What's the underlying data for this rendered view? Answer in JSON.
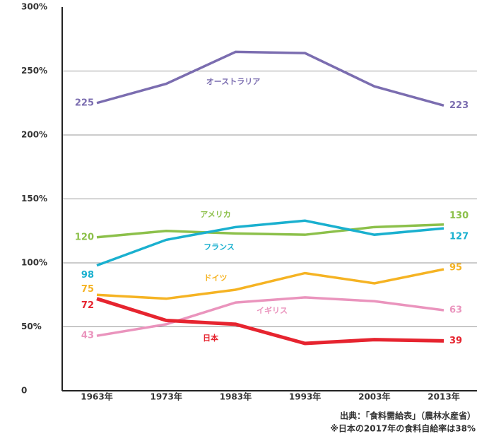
{
  "chart_data": {
    "type": "line",
    "categories": [
      "1963年",
      "1973年",
      "1983年",
      "1993年",
      "2003年",
      "2013年"
    ],
    "series": [
      {
        "name": "オーストラリア",
        "color": "#7b6db0",
        "values": [
          225,
          240,
          265,
          264,
          238,
          223
        ]
      },
      {
        "name": "アメリカ",
        "color": "#8cc04a",
        "values": [
          120,
          125,
          123,
          122,
          128,
          130
        ]
      },
      {
        "name": "フランス",
        "color": "#1ab0cf",
        "values": [
          98,
          118,
          128,
          133,
          122,
          127
        ]
      },
      {
        "name": "ドイツ",
        "color": "#f5b323",
        "values": [
          75,
          72,
          79,
          92,
          84,
          95
        ]
      },
      {
        "name": "イギリス",
        "color": "#ea94bd",
        "values": [
          43,
          52,
          69,
          73,
          70,
          63
        ]
      },
      {
        "name": "日本",
        "color": "#e6242f",
        "values": [
          72,
          55,
          52,
          37,
          40,
          39
        ]
      }
    ],
    "ylim": [
      0,
      300
    ],
    "yticks": [
      0,
      {
        "value": 50,
        "label": "50%"
      },
      {
        "value": 100,
        "label": "100%"
      },
      {
        "value": 150,
        "label": "150%"
      },
      {
        "value": 200,
        "label": "200%"
      },
      {
        "value": 250,
        "label": "250%"
      },
      {
        "value": 300,
        "label": "300%"
      }
    ],
    "grid": true,
    "source": "出典：「食料需給表」（農林水産省）",
    "note": "※日本の2017年の食料自給率は38%"
  }
}
